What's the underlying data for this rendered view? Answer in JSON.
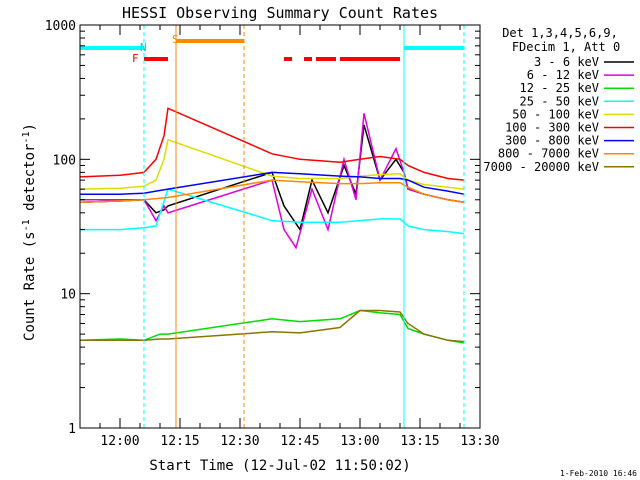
{
  "chart_data": {
    "type": "line",
    "title": "HESSI Observing Summary Count Rates",
    "xlabel": "Start Time (12-Jul-02 11:50:02)",
    "ylabel": "Count Rate (s",
    "ylabel_sup": "-1",
    "ylabel_mid": " detector",
    "ylabel_end": ")",
    "y_scale": "log",
    "ylim": [
      1,
      1000
    ],
    "xlim": [
      "11:50",
      "13:30"
    ],
    "x_ticks": [
      "12:00",
      "12:15",
      "12:30",
      "12:45",
      "13:00",
      "13:15",
      "13:30"
    ],
    "y_ticks": [
      "1",
      "10",
      "100",
      "1000"
    ],
    "legend_header": [
      "Det 1,3,4,5,6,9,",
      "FDecim 1, Att 0"
    ],
    "legend_position": "right",
    "timestamp": "1-Feb-2010 16:46",
    "flag_labels": {
      "F": "F",
      "N": "N",
      "S": "S"
    },
    "series": [
      {
        "name": "3 - 6 keV",
        "color": "#000000",
        "x": [
          "11:50",
          "12:00",
          "12:06",
          "12:09",
          "12:11",
          "12:12",
          "12:38",
          "12:41",
          "12:45",
          "12:48",
          "12:52",
          "12:56",
          "12:59",
          "13:01",
          "13:05",
          "13:09",
          "13:11",
          "13:12",
          "13:16",
          "13:22",
          "13:26"
        ],
        "y": [
          48,
          49,
          50,
          40,
          42,
          45,
          80,
          45,
          30,
          70,
          40,
          90,
          55,
          180,
          70,
          100,
          80,
          60,
          55,
          50,
          48
        ]
      },
      {
        "name": "6 - 12 keV",
        "color": "#e000e0",
        "x": [
          "11:50",
          "12:00",
          "12:06",
          "12:09",
          "12:11",
          "12:12",
          "12:38",
          "12:41",
          "12:44",
          "12:48",
          "12:52",
          "12:56",
          "12:59",
          "13:01",
          "13:05",
          "13:09",
          "13:11",
          "13:12",
          "13:16",
          "13:22",
          "13:26"
        ],
        "y": [
          50,
          50,
          50,
          35,
          45,
          40,
          70,
          30,
          22,
          60,
          30,
          100,
          50,
          220,
          70,
          120,
          80,
          60,
          55,
          50,
          48
        ]
      },
      {
        "name": "12 - 25 keV",
        "color": "#00dd00",
        "x": [
          "11:50",
          "12:00",
          "12:06",
          "12:10",
          "12:12",
          "12:38",
          "12:45",
          "12:55",
          "13:00",
          "13:05",
          "13:10",
          "13:12",
          "13:16",
          "13:22",
          "13:26"
        ],
        "y": [
          4.5,
          4.6,
          4.5,
          5,
          5,
          6.5,
          6.2,
          6.5,
          7.5,
          7.2,
          7,
          5.5,
          5,
          4.5,
          4.3
        ]
      },
      {
        "name": "25 - 50 keV",
        "color": "#00ffff",
        "x": [
          "11:50",
          "12:00",
          "12:06",
          "12:09",
          "12:12",
          "12:38",
          "12:45",
          "12:55",
          "13:00",
          "13:05",
          "13:10",
          "13:12",
          "13:16",
          "13:22",
          "13:26"
        ],
        "y": [
          30,
          30,
          31,
          32,
          60,
          35,
          34,
          34,
          35,
          36,
          36,
          32,
          30,
          29,
          28
        ]
      },
      {
        "name": "50 - 100 keV",
        "color": "#dddd00",
        "x": [
          "11:50",
          "12:00",
          "12:06",
          "12:09",
          "12:11",
          "12:12",
          "12:38",
          "12:45",
          "12:55",
          "13:00",
          "13:05",
          "13:10",
          "13:12",
          "13:16",
          "13:22",
          "13:26"
        ],
        "y": [
          60,
          61,
          63,
          70,
          100,
          140,
          75,
          72,
          72,
          75,
          77,
          78,
          70,
          65,
          62,
          60
        ]
      },
      {
        "name": "100 - 300 keV",
        "color": "#ff0000",
        "x": [
          "11:50",
          "12:00",
          "12:06",
          "12:09",
          "12:11",
          "12:12",
          "12:38",
          "12:45",
          "12:55",
          "13:00",
          "13:05",
          "13:10",
          "13:12",
          "13:16",
          "13:22",
          "13:26"
        ],
        "y": [
          74,
          76,
          80,
          100,
          150,
          240,
          110,
          100,
          95,
          100,
          105,
          100,
          90,
          80,
          72,
          70
        ]
      },
      {
        "name": "300 - 800 keV",
        "color": "#0000ff",
        "x": [
          "11:50",
          "12:00",
          "12:06",
          "12:09",
          "12:12",
          "12:38",
          "12:45",
          "12:55",
          "13:00",
          "13:05",
          "13:10",
          "13:12",
          "13:16",
          "13:22",
          "13:26"
        ],
        "y": [
          55,
          55,
          56,
          58,
          60,
          80,
          78,
          75,
          74,
          72,
          72,
          70,
          62,
          58,
          55
        ]
      },
      {
        "name": "800 - 7000 keV",
        "color": "#ff8800",
        "x": [
          "11:50",
          "12:00",
          "12:06",
          "12:09",
          "12:12",
          "12:38",
          "12:45",
          "12:55",
          "13:00",
          "13:05",
          "13:10",
          "13:12",
          "13:16",
          "13:22",
          "13:26"
        ],
        "y": [
          48,
          49,
          50,
          51,
          52,
          70,
          68,
          66,
          66,
          67,
          67,
          62,
          55,
          50,
          48
        ]
      },
      {
        "name": "7000 - 20000 keV",
        "color": "#8b7500",
        "x": [
          "11:50",
          "12:00",
          "12:06",
          "12:10",
          "12:12",
          "12:38",
          "12:45",
          "12:55",
          "13:00",
          "13:05",
          "13:10",
          "13:12",
          "13:16",
          "13:22",
          "13:26"
        ],
        "y": [
          4.5,
          4.5,
          4.5,
          4.6,
          4.6,
          5.2,
          5.1,
          5.6,
          7.5,
          7.5,
          7.3,
          6,
          5,
          4.5,
          4.4
        ]
      }
    ],
    "flags": {
      "saa_night_cyan": [
        [
          "11:50",
          "12:06"
        ],
        [
          "13:11",
          "13:26"
        ]
      ],
      "flare_red": [
        [
          "12:06",
          "12:12"
        ],
        [
          "12:41",
          "12:43"
        ],
        [
          "12:46",
          "12:48"
        ],
        [
          "12:49",
          "12:54"
        ],
        [
          "12:55",
          "13:10"
        ]
      ],
      "saa_orange": [
        [
          "12:14",
          "12:31"
        ]
      ]
    }
  }
}
